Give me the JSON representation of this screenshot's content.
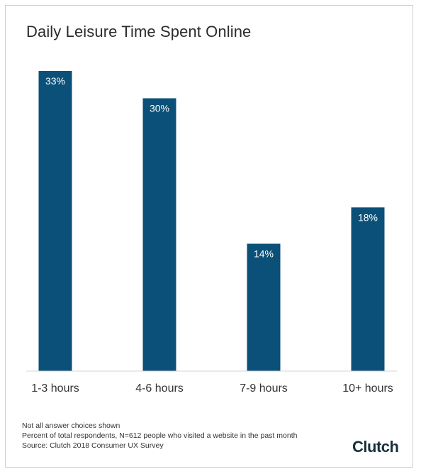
{
  "chart_data": {
    "type": "bar",
    "title": "Daily Leisure Time Spent Online",
    "categories": [
      "1-3 hours",
      "4-6 hours",
      "7-9 hours",
      "10+ hours"
    ],
    "values": [
      33,
      30,
      14,
      18
    ],
    "value_labels": [
      "33%",
      "30%",
      "14%",
      "18%"
    ],
    "xlabel": "",
    "ylabel": "",
    "ylim": [
      0,
      33
    ],
    "grid": false,
    "bar_color": "#0b5078",
    "label_color": "#ffffff"
  },
  "footnotes": [
    "Not all answer choices shown",
    "Percent of total respondents, N=612 people who visited a website in the past month",
    "Source: Clutch 2018 Consumer UX Survey"
  ],
  "brand": {
    "logo_text": "Clutch"
  }
}
